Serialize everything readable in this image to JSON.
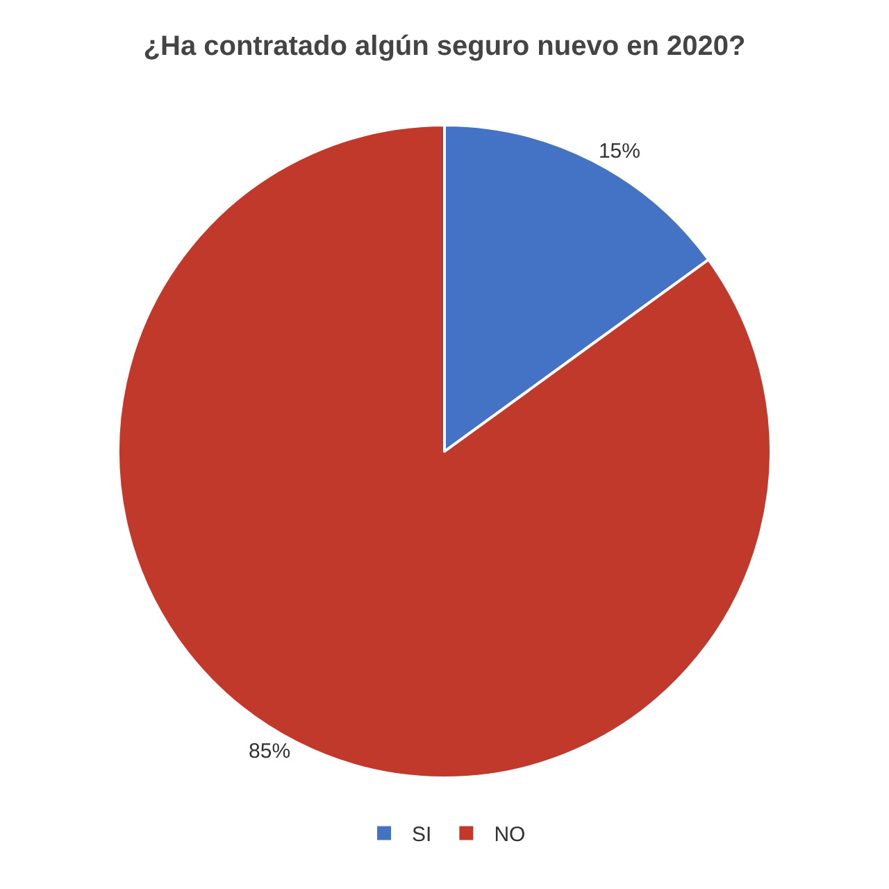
{
  "chart_data": {
    "type": "pie",
    "title": "¿Ha contratado algún seguro nuevo en 2020?",
    "categories": [
      "SI",
      "NO"
    ],
    "values": [
      15,
      85
    ],
    "colors": [
      "#4472c4",
      "#c0392b"
    ],
    "value_labels": [
      "15%",
      "85%"
    ],
    "legend": "bottom"
  }
}
